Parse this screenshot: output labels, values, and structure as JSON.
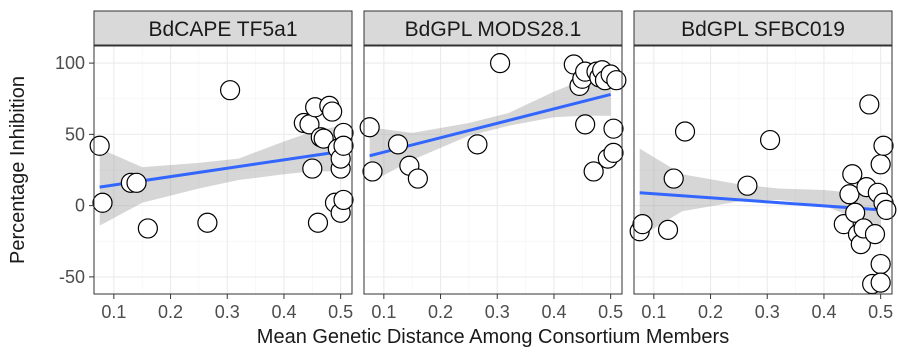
{
  "chart_data": {
    "type": "scatter",
    "xlabel": "Mean Genetic Distance Among Consortium Members",
    "ylabel": "Percentage Inhibition",
    "xlim": [
      0.065,
      0.52
    ],
    "ylim": [
      -62,
      112
    ],
    "x_ticks": [
      0.1,
      0.2,
      0.3,
      0.4,
      0.5
    ],
    "y_ticks": [
      100,
      50,
      0,
      -50
    ],
    "x_tick_labels": [
      "0.1",
      "0.2",
      "0.3",
      "0.4",
      "0.5"
    ],
    "y_tick_labels": [
      "100",
      "50",
      "0",
      "-50"
    ],
    "grid": true,
    "colors": {
      "fit_line": "#3366ff",
      "band": "#999999",
      "strip": "#d9d9d9",
      "point_fill": "#ffffff",
      "point_stroke": "#000000"
    },
    "panels": [
      {
        "title": "BdCAPE TF5a1",
        "fit": {
          "x": [
            0.075,
            0.5
          ],
          "y": [
            13,
            38
          ]
        },
        "band": {
          "x": [
            0.075,
            0.15,
            0.25,
            0.32,
            0.4,
            0.45,
            0.5
          ],
          "lower": [
            -14,
            2,
            12,
            18,
            22,
            24,
            24
          ],
          "upper": [
            40,
            27,
            30,
            33,
            45,
            52,
            56
          ]
        },
        "points": [
          {
            "x": 0.075,
            "y": 42
          },
          {
            "x": 0.08,
            "y": 2
          },
          {
            "x": 0.13,
            "y": 16
          },
          {
            "x": 0.14,
            "y": 16
          },
          {
            "x": 0.16,
            "y": -16
          },
          {
            "x": 0.265,
            "y": -12
          },
          {
            "x": 0.305,
            "y": 81
          },
          {
            "x": 0.435,
            "y": 58
          },
          {
            "x": 0.445,
            "y": 57
          },
          {
            "x": 0.45,
            "y": 26
          },
          {
            "x": 0.455,
            "y": 69
          },
          {
            "x": 0.46,
            "y": -12
          },
          {
            "x": 0.465,
            "y": 48
          },
          {
            "x": 0.47,
            "y": 47
          },
          {
            "x": 0.48,
            "y": 70
          },
          {
            "x": 0.485,
            "y": 66
          },
          {
            "x": 0.49,
            "y": 2
          },
          {
            "x": 0.495,
            "y": 40
          },
          {
            "x": 0.5,
            "y": -5
          },
          {
            "x": 0.5,
            "y": 26
          },
          {
            "x": 0.5,
            "y": 33
          },
          {
            "x": 0.505,
            "y": 51
          },
          {
            "x": 0.505,
            "y": 42
          },
          {
            "x": 0.505,
            "y": 4
          }
        ]
      },
      {
        "title": "BdGPL MODS28.1",
        "fit": {
          "x": [
            0.075,
            0.5
          ],
          "y": [
            35,
            78
          ]
        },
        "band": {
          "x": [
            0.075,
            0.15,
            0.25,
            0.32,
            0.4,
            0.45,
            0.5
          ],
          "lower": [
            16,
            32,
            49,
            56,
            62,
            63,
            63
          ],
          "upper": [
            55,
            51,
            58,
            65,
            80,
            88,
            93
          ]
        },
        "points": [
          {
            "x": 0.075,
            "y": 55
          },
          {
            "x": 0.08,
            "y": 24
          },
          {
            "x": 0.125,
            "y": 43
          },
          {
            "x": 0.145,
            "y": 28
          },
          {
            "x": 0.16,
            "y": 19
          },
          {
            "x": 0.265,
            "y": 43
          },
          {
            "x": 0.305,
            "y": 100
          },
          {
            "x": 0.435,
            "y": 99
          },
          {
            "x": 0.445,
            "y": 84
          },
          {
            "x": 0.45,
            "y": 89
          },
          {
            "x": 0.455,
            "y": 57
          },
          {
            "x": 0.455,
            "y": 94
          },
          {
            "x": 0.47,
            "y": 24
          },
          {
            "x": 0.475,
            "y": 94
          },
          {
            "x": 0.48,
            "y": 90
          },
          {
            "x": 0.485,
            "y": 95
          },
          {
            "x": 0.49,
            "y": 88
          },
          {
            "x": 0.495,
            "y": 33
          },
          {
            "x": 0.5,
            "y": 92
          },
          {
            "x": 0.505,
            "y": 54
          },
          {
            "x": 0.505,
            "y": 37
          },
          {
            "x": 0.51,
            "y": 88
          }
        ]
      },
      {
        "title": "BdGPL SFBC019",
        "fit": {
          "x": [
            0.075,
            0.5
          ],
          "y": [
            9,
            -3
          ]
        },
        "band": {
          "x": [
            0.075,
            0.15,
            0.25,
            0.32,
            0.4,
            0.45,
            0.5
          ],
          "lower": [
            -22,
            -4,
            3,
            4,
            0,
            -8,
            -15
          ],
          "upper": [
            40,
            22,
            15,
            12,
            11,
            9,
            8
          ]
        },
        "points": [
          {
            "x": 0.075,
            "y": -18
          },
          {
            "x": 0.08,
            "y": -13
          },
          {
            "x": 0.125,
            "y": -17
          },
          {
            "x": 0.135,
            "y": 19
          },
          {
            "x": 0.155,
            "y": 52
          },
          {
            "x": 0.265,
            "y": 14
          },
          {
            "x": 0.305,
            "y": 46
          },
          {
            "x": 0.435,
            "y": -13
          },
          {
            "x": 0.445,
            "y": 8
          },
          {
            "x": 0.45,
            "y": 22
          },
          {
            "x": 0.455,
            "y": -5
          },
          {
            "x": 0.46,
            "y": -20
          },
          {
            "x": 0.465,
            "y": -27
          },
          {
            "x": 0.47,
            "y": -16
          },
          {
            "x": 0.475,
            "y": 13
          },
          {
            "x": 0.48,
            "y": 71
          },
          {
            "x": 0.485,
            "y": -55
          },
          {
            "x": 0.49,
            "y": -20
          },
          {
            "x": 0.495,
            "y": 9
          },
          {
            "x": 0.5,
            "y": -41
          },
          {
            "x": 0.5,
            "y": -54
          },
          {
            "x": 0.5,
            "y": 29
          },
          {
            "x": 0.505,
            "y": 42
          },
          {
            "x": 0.505,
            "y": 2
          },
          {
            "x": 0.51,
            "y": -3
          }
        ]
      }
    ]
  }
}
